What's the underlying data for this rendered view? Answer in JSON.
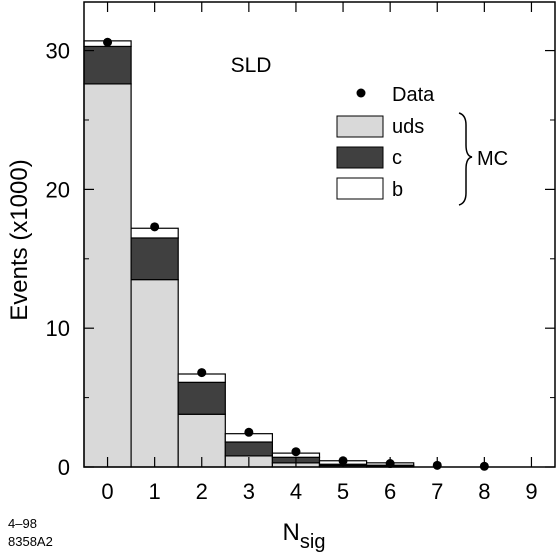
{
  "chart_data": {
    "type": "bar",
    "stacked": true,
    "title": "",
    "annotation": "SLD",
    "xlabel": "N",
    "xlabel_sub": "sig",
    "ylabel": "Events  (x1000)",
    "xlim": [
      -0.5,
      9.5
    ],
    "ylim": [
      0,
      33.5
    ],
    "categories": [
      "0",
      "1",
      "2",
      "3",
      "4",
      "5",
      "6",
      "7",
      "8",
      "9"
    ],
    "x_ticks": [
      "0",
      "1",
      "2",
      "3",
      "4",
      "5",
      "6",
      "7",
      "8",
      "9"
    ],
    "y_ticks": [
      "0",
      "10",
      "20",
      "30"
    ],
    "series": [
      {
        "name": "uds",
        "color": "#d9d9d9",
        "values": [
          27.6,
          13.5,
          3.8,
          0.8,
          0.3,
          0.1,
          0.08,
          0.0,
          0.0,
          0.0
        ]
      },
      {
        "name": "c",
        "color": "#404040",
        "values": [
          2.7,
          3.0,
          2.3,
          1.0,
          0.4,
          0.1,
          0.05,
          0.0,
          0.0,
          0.0
        ]
      },
      {
        "name": "b",
        "color": "#ffffff",
        "values": [
          0.4,
          0.7,
          0.6,
          0.6,
          0.3,
          0.25,
          0.17,
          0.0,
          0.0,
          0.0
        ]
      }
    ],
    "data_points": {
      "name": "Data",
      "x": [
        0,
        1,
        2,
        3,
        4,
        5,
        6,
        7,
        8
      ],
      "y": [
        30.6,
        17.3,
        6.8,
        2.5,
        1.1,
        0.45,
        0.25,
        0.12,
        0.05
      ]
    },
    "legend_group_label": "MC",
    "legend_placement": "top-right",
    "grid": false
  },
  "footnote": {
    "line1": "4–98",
    "line2": "8358A2"
  }
}
